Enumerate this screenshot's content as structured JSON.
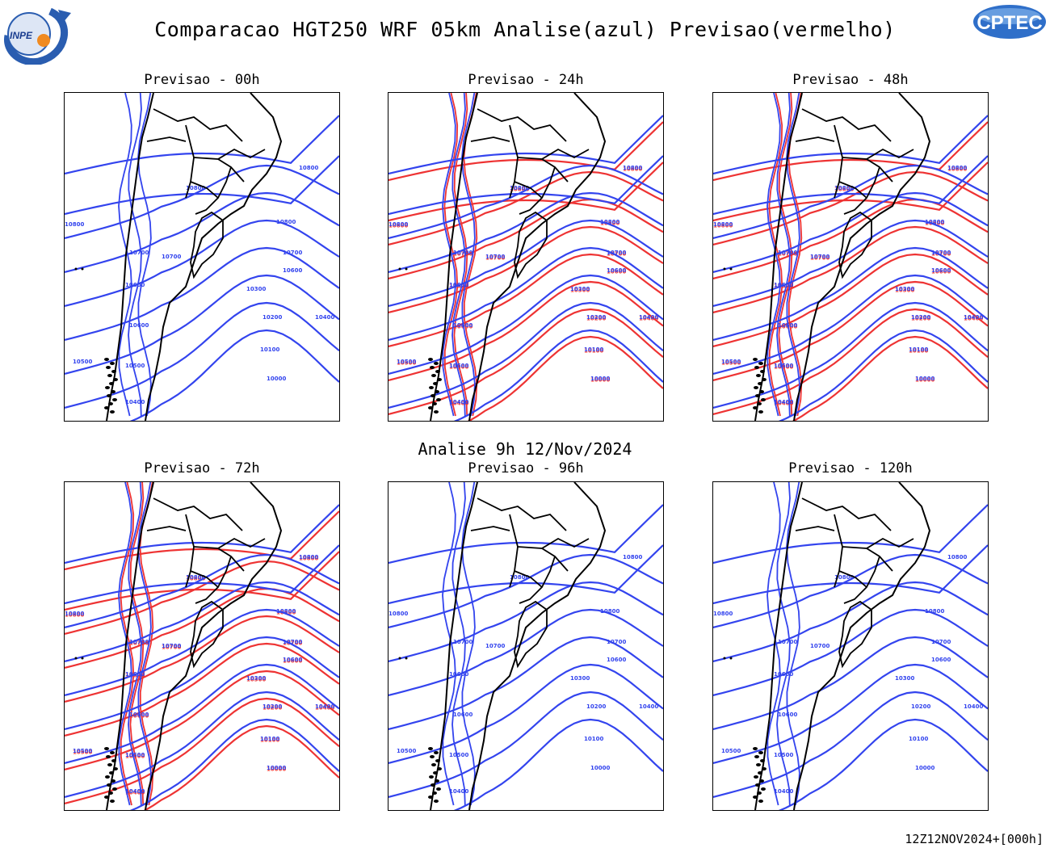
{
  "header": {
    "title": "Comparacao HGT250 WRF 05km Analise(azul) Previsao(vermelho)",
    "logo_left": "INPE",
    "logo_right": "CPTEC"
  },
  "analysis_label": "Analise 9h 12/Nov/2024",
  "footer": "12Z12NOV2024+[000h]",
  "colors": {
    "analysis": "#3344ee",
    "forecast": "#ee3333",
    "coast": "#000000"
  },
  "panels": [
    {
      "title": "Previsao - 00h",
      "forecast_visible": false
    },
    {
      "title": "Previsao - 24h",
      "forecast_visible": true
    },
    {
      "title": "Previsao - 48h",
      "forecast_visible": true
    },
    {
      "title": "Previsao - 72h",
      "forecast_visible": true
    },
    {
      "title": "Previsao - 96h",
      "forecast_visible": false
    },
    {
      "title": "Previsao - 120h",
      "forecast_visible": false
    }
  ],
  "contour_labels": [
    "10800",
    "10800",
    "10800",
    "10800",
    "10700",
    "10700",
    "10700",
    "10600",
    "10600",
    "10600",
    "10500",
    "10500",
    "10400",
    "10400",
    "10300",
    "10200",
    "10100",
    "10000"
  ]
}
